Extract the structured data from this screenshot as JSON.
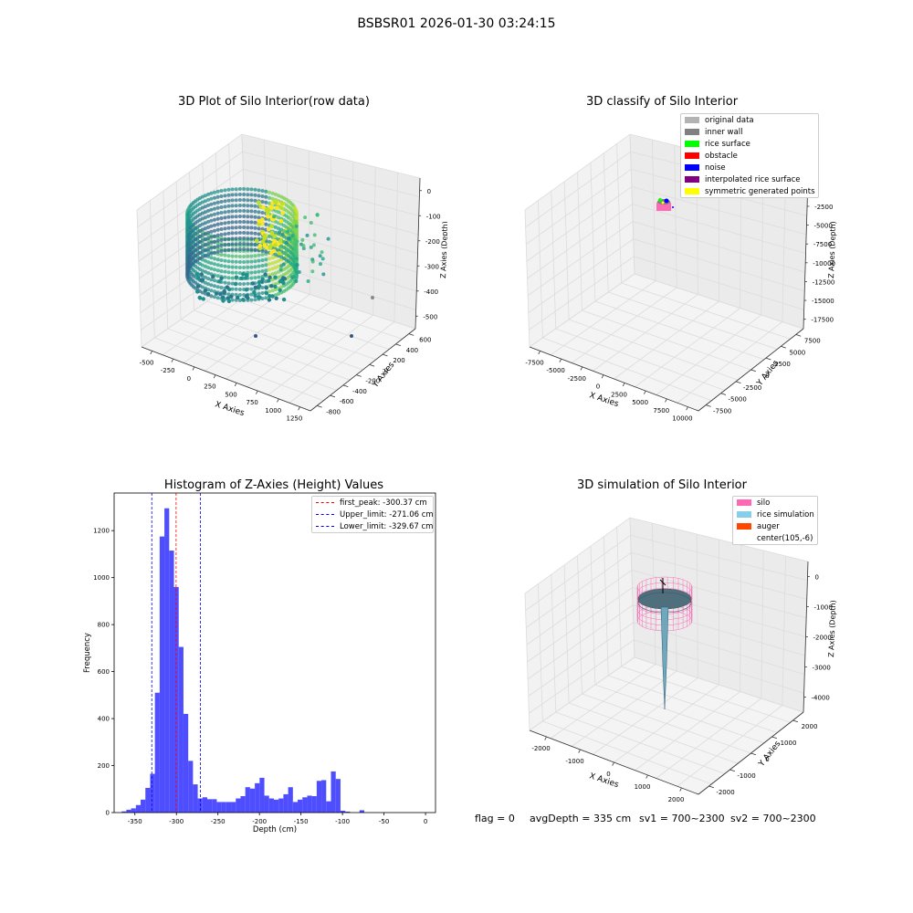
{
  "figure": {
    "suptitle": "BSBSR01 2026-01-30 03:24:15"
  },
  "chart_data": [
    {
      "type": "scatter",
      "title": "3D Plot of Silo Interior(row data)",
      "xlabel": "X Axies",
      "ylabel": "Y Axies",
      "zlabel": "Z Axies (Depth)",
      "xticks": [
        -500,
        -250,
        0,
        250,
        500,
        750,
        1000,
        1250
      ],
      "yticks": [
        -800,
        -600,
        -400,
        -200,
        0,
        200,
        400,
        600
      ],
      "zticks": [
        0,
        -100,
        -200,
        -300,
        -400,
        -500
      ],
      "colormap": "viridis"
    },
    {
      "type": "scatter",
      "title": "3D classify of Silo Interior",
      "xlabel": "X Axies",
      "ylabel": "Y Axies",
      "zlabel": "Z Axies (Depth)",
      "xticks": [
        -7500,
        -5000,
        -2500,
        0,
        2500,
        5000,
        7500,
        10000
      ],
      "yticks": [
        -7500,
        -5000,
        -2500,
        0,
        2500,
        5000,
        7500
      ],
      "zticks": [
        0,
        -2500,
        -5000,
        -7500,
        -10000,
        -12500,
        -15000,
        -17500
      ],
      "legend": [
        {
          "label": "original data",
          "color": "#b3b3b3"
        },
        {
          "label": "inner wall",
          "color": "#808080"
        },
        {
          "label": "rice surface",
          "color": "#00ff00"
        },
        {
          "label": "obstacle",
          "color": "#ff0000"
        },
        {
          "label": "noise",
          "color": "#0000ff"
        },
        {
          "label": "interpolated rice surface",
          "color": "#800080"
        },
        {
          "label": "symmetric generated points",
          "color": "#ffff00"
        }
      ],
      "legend_position": "top-right"
    },
    {
      "type": "bar",
      "title": "Histogram of Z-Axies (Height) Values",
      "xlabel": "Depth (cm)",
      "ylabel": "Frequency",
      "xlim": [
        -375,
        12
      ],
      "ylim": [
        0,
        1360
      ],
      "xticks": [
        -350,
        -300,
        -250,
        -200,
        -150,
        -100,
        -50,
        0
      ],
      "yticks": [
        0,
        200,
        400,
        600,
        800,
        1000,
        1200
      ],
      "bin_start": -366,
      "bin_width": 5.73,
      "values": [
        5,
        12,
        18,
        32,
        55,
        105,
        165,
        510,
        1175,
        1295,
        1115,
        960,
        705,
        420,
        220,
        120,
        60,
        65,
        57,
        57,
        45,
        45,
        45,
        45,
        60,
        70,
        108,
        102,
        125,
        148,
        72,
        60,
        55,
        60,
        78,
        108,
        45,
        55,
        65,
        72,
        70,
        135,
        138,
        48,
        175,
        143,
        8,
        4,
        0,
        0,
        10,
        0
      ],
      "color": "#3535ff",
      "vlines": [
        {
          "label": "first_peak: -300.37 cm",
          "x": -300.37,
          "color": "#ff0000"
        },
        {
          "label": "Upper_limit: -271.06 cm",
          "x": -271.06,
          "color": "#0000ff"
        },
        {
          "label": "Lower_limit: -329.67 cm",
          "x": -329.67,
          "color": "#0000ff"
        }
      ],
      "legend_position": "top-right"
    },
    {
      "type": "surface",
      "title": "3D simulation of Silo Interior",
      "xlabel": "X Axies",
      "ylabel": "Y Axies",
      "zlabel": "Z Axies (Depth)",
      "xticks": [
        -2000,
        -1000,
        0,
        1000,
        2000
      ],
      "yticks": [
        -2000,
        -1000,
        0,
        1000,
        2000
      ],
      "zticks": [
        0,
        -1000,
        -2000,
        -3000,
        -4000
      ],
      "legend": [
        {
          "label": "silo",
          "color": "#ff69b4"
        },
        {
          "label": "rice simulation",
          "color": "#87ceeb"
        },
        {
          "label": "auger",
          "color": "#ff4500"
        },
        {
          "label": "center(105,-6)",
          "color": "#ffffff"
        }
      ],
      "legend_position": "top-right"
    }
  ],
  "footer": {
    "flag": "flag = 0",
    "avg": "avgDepth = 335 cm",
    "sv1": "sv1 = 700~2300",
    "sv2": "sv2 = 700~2300"
  }
}
